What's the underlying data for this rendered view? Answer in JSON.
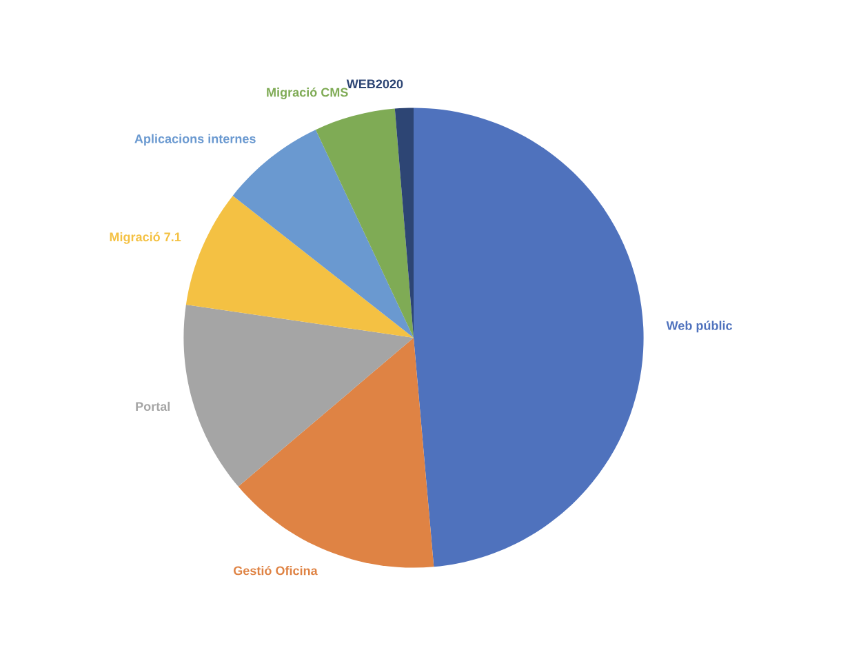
{
  "chart_data": {
    "type": "pie",
    "categories": [
      "Web públic",
      "Gestió Oficina",
      "Portal",
      "Migració 7.1",
      "Aplicacions internes",
      "Migració CMS",
      "WEB2020"
    ],
    "values": [
      48.6,
      15.2,
      13.5,
      8.3,
      7.4,
      5.7,
      1.3
    ],
    "colors": [
      "#4f72bd",
      "#df8344",
      "#a5a5a5",
      "#f4c143",
      "#6a99d0",
      "#7fab55",
      "#2d4574"
    ]
  }
}
